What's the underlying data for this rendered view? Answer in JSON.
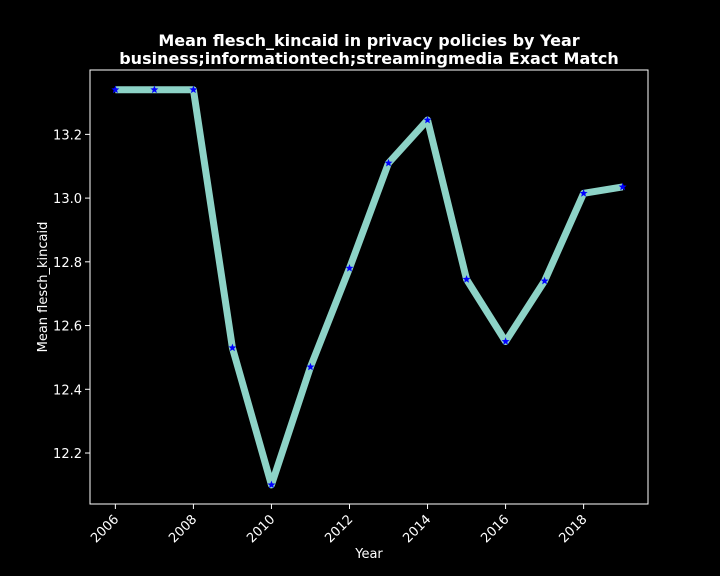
{
  "chart_data": {
    "type": "line",
    "title": "Mean flesch_kincaid in privacy policies by Year",
    "subtitle": "business;informationtech;streamingmedia Exact Match",
    "xlabel": "Year",
    "ylabel": "Mean flesch_kincaid",
    "x": [
      2006,
      2007,
      2008,
      2009,
      2010,
      2011,
      2012,
      2013,
      2014,
      2015,
      2016,
      2017,
      2018,
      2019
    ],
    "values": [
      13.34,
      13.34,
      13.34,
      12.53,
      12.1,
      12.47,
      12.78,
      13.11,
      13.245,
      12.745,
      12.55,
      12.74,
      13.015,
      13.035
    ],
    "xticks": [
      2006,
      2008,
      2010,
      2012,
      2014,
      2016,
      2018
    ],
    "yticks": [
      12.2,
      12.4,
      12.6,
      12.8,
      13.0,
      13.2
    ],
    "xlim": [
      2005.35,
      2019.65
    ],
    "ylim": [
      12.04,
      13.402
    ],
    "grid": false,
    "line_color": "#8dd3c7",
    "marker_color": "#0000ff",
    "background": "#000000",
    "axis_color": "#ffffff"
  }
}
